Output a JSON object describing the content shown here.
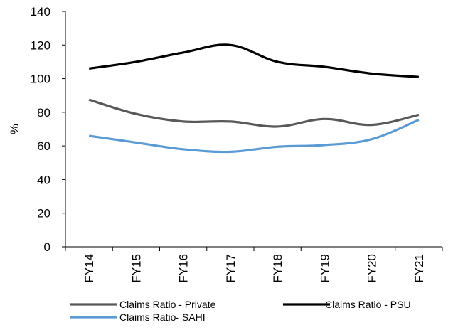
{
  "chart_data": {
    "type": "line",
    "title": "",
    "xlabel": "",
    "ylabel": "%",
    "ylim": [
      0,
      140
    ],
    "yticks": [
      0,
      20,
      40,
      60,
      80,
      100,
      120,
      140
    ],
    "categories": [
      "FY14",
      "FY15",
      "FY16",
      "FY17",
      "FY18",
      "FY19",
      "FY20",
      "FY21"
    ],
    "grid": false,
    "legend_position": "bottom",
    "series": [
      {
        "name": "Claims Ratio - Private",
        "color": "#595959",
        "values": [
          87.5,
          79,
          74.5,
          74.5,
          71.5,
          76,
          72.5,
          78.5
        ]
      },
      {
        "name": "Claims Ratio - PSU",
        "color": "#000000",
        "values": [
          106,
          110,
          115.5,
          120,
          110,
          107,
          103,
          101
        ]
      },
      {
        "name": "Claims Ratio- SAHI",
        "color": "#5b9bd5",
        "values": [
          66,
          62,
          58,
          56.5,
          59.5,
          60.5,
          64,
          75.5
        ]
      }
    ]
  }
}
